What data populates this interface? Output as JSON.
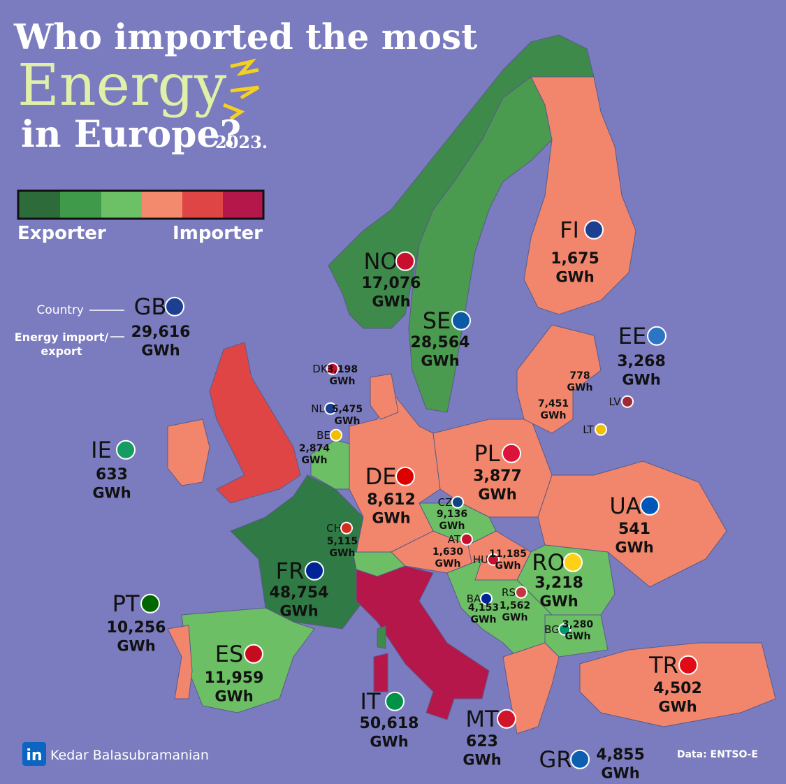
{
  "title": {
    "line1": "Who imported the most",
    "line2": "Energy",
    "line3": "in Europe?",
    "year": "2023."
  },
  "legend": {
    "left": "Exporter",
    "right": "Importer"
  },
  "key": {
    "country": "Country",
    "value": [
      "Energy import/",
      "export"
    ]
  },
  "unit": "GWh",
  "countries": [
    {
      "code": "FI",
      "value": "1,675"
    },
    {
      "code": "NO",
      "value": "17,076"
    },
    {
      "code": "SE",
      "value": "28,564"
    },
    {
      "code": "GB",
      "value": "29,616"
    },
    {
      "code": "EE",
      "value": "3,268"
    },
    {
      "code": "DK",
      "value": "3,198"
    },
    {
      "code": "LV",
      "value": "778"
    },
    {
      "code": "LT",
      "value": "7,451"
    },
    {
      "code": "NL",
      "value": "5,475"
    },
    {
      "code": "BE",
      "value": "2,874"
    },
    {
      "code": "IE",
      "value": "633"
    },
    {
      "code": "PL",
      "value": "3,877"
    },
    {
      "code": "DE",
      "value": "8,612"
    },
    {
      "code": "UA",
      "value": "541"
    },
    {
      "code": "CZ",
      "value": "9,136"
    },
    {
      "code": "CH",
      "value": "5,115"
    },
    {
      "code": "AT",
      "value": "1,630"
    },
    {
      "code": "HU",
      "value": "11,185"
    },
    {
      "code": "RO",
      "value": "3,218"
    },
    {
      "code": "FR",
      "value": "48,754"
    },
    {
      "code": "PT",
      "value": "10,256"
    },
    {
      "code": "BA",
      "value": "4,153"
    },
    {
      "code": "RS",
      "value": "1,562"
    },
    {
      "code": "BG",
      "value": "3,280"
    },
    {
      "code": "ES",
      "value": "11,959"
    },
    {
      "code": "TR",
      "value": "4,502"
    },
    {
      "code": "IT",
      "value": "50,618"
    },
    {
      "code": "MT",
      "value": "623"
    },
    {
      "code": "GR",
      "value": "4,855"
    }
  ],
  "footer": {
    "logo": "in",
    "author": "Kedar Balasubramanian",
    "source": "Data: ENTSO-E"
  }
}
